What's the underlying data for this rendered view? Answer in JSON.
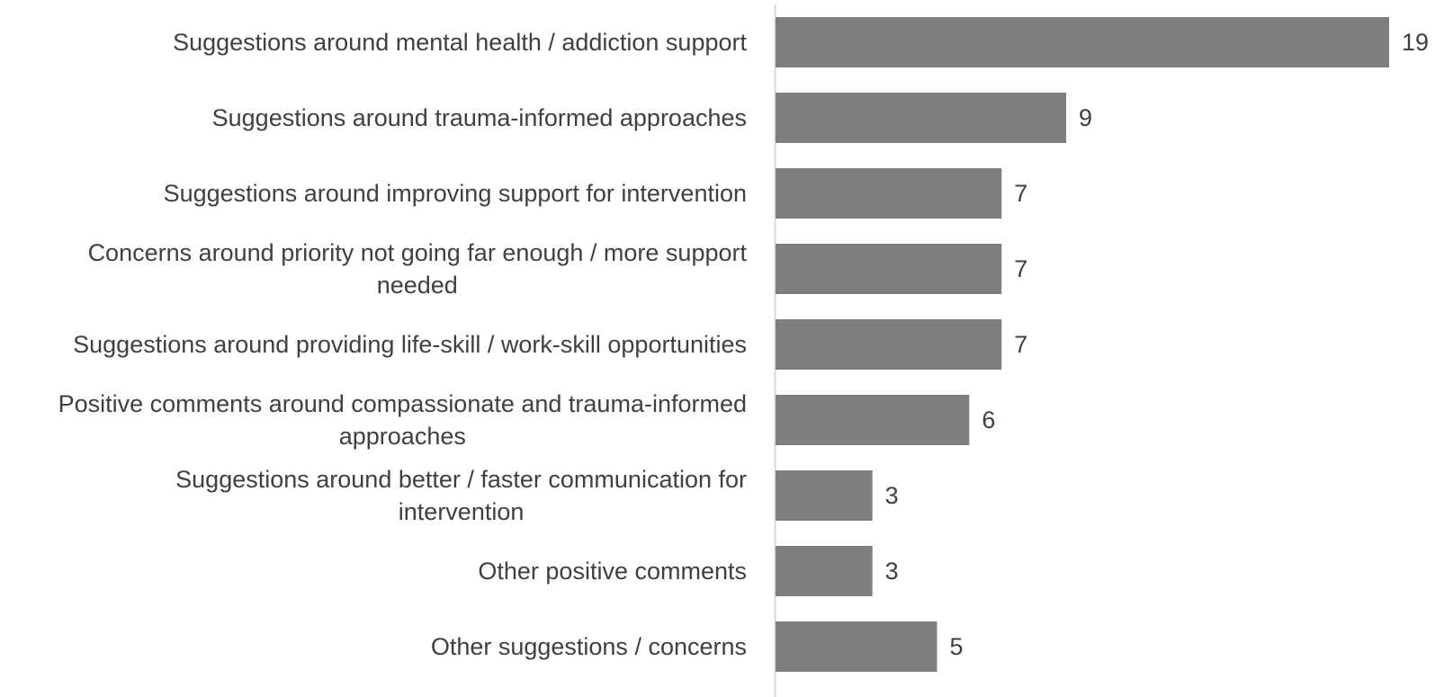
{
  "chart_data": {
    "type": "bar",
    "orientation": "horizontal",
    "categories": [
      [
        "Suggestions around mental health / addiction support"
      ],
      [
        "Suggestions around trauma-informed approaches"
      ],
      [
        "Suggestions around improving support for intervention"
      ],
      [
        "Concerns around priority not going far enough / more support",
        "needed"
      ],
      [
        "Suggestions around providing life-skill / work-skill opportunities"
      ],
      [
        "Positive comments around compassionate and trauma-informed",
        "approaches"
      ],
      [
        "Suggestions around better / faster communication for",
        "intervention"
      ],
      [
        "Other positive comments"
      ],
      [
        "Other suggestions / concerns"
      ]
    ],
    "values": [
      19,
      9,
      7,
      7,
      7,
      6,
      3,
      3,
      5
    ],
    "data_labels": [
      "19",
      "9",
      "7",
      "7",
      "7",
      "6",
      "3",
      "3",
      "5"
    ],
    "xlim": [
      0,
      19
    ],
    "bar_color": "#7f7f7f",
    "axis_color": "#d9d9d9",
    "label_color": "#404040",
    "grid": false,
    "legend": "none",
    "title": "",
    "xlabel": "",
    "ylabel": ""
  }
}
